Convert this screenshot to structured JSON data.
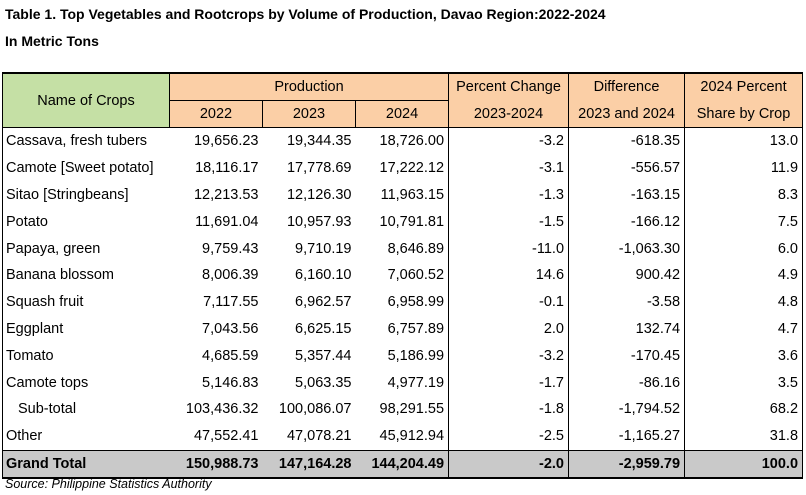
{
  "title": "Table 1. Top Vegetables and Rootcrops by Volume of Production, Davao Region:2022-2024",
  "subtitle": "In Metric Tons",
  "header": {
    "name_col": "Name of Crops",
    "production": "Production",
    "years": [
      "2022",
      "2023",
      "2024"
    ],
    "pct_change_top": "Percent Change",
    "pct_change_bottom": "2023-2024",
    "difference_top": "Difference",
    "difference_bottom": "2023 and 2024",
    "share_top": "2024 Percent",
    "share_bottom": "Share by Crop"
  },
  "rows": [
    {
      "name": "Cassava, fresh tubers",
      "y2022": "19,656.23",
      "y2023": "19,344.35",
      "y2024": "18,726.00",
      "pct": "-3.2",
      "diff": "-618.35",
      "share": "13.0"
    },
    {
      "name": "Camote [Sweet potato]",
      "y2022": "18,116.17",
      "y2023": "17,778.69",
      "y2024": "17,222.12",
      "pct": "-3.1",
      "diff": "-556.57",
      "share": "11.9"
    },
    {
      "name": "Sitao [Stringbeans]",
      "y2022": "12,213.53",
      "y2023": "12,126.30",
      "y2024": "11,963.15",
      "pct": "-1.3",
      "diff": "-163.15",
      "share": "8.3"
    },
    {
      "name": "Potato",
      "y2022": "11,691.04",
      "y2023": "10,957.93",
      "y2024": "10,791.81",
      "pct": "-1.5",
      "diff": "-166.12",
      "share": "7.5"
    },
    {
      "name": "Papaya, green",
      "y2022": "9,759.43",
      "y2023": "9,710.19",
      "y2024": "8,646.89",
      "pct": "-11.0",
      "diff": "-1,063.30",
      "share": "6.0"
    },
    {
      "name": "Banana blossom",
      "y2022": "8,006.39",
      "y2023": "6,160.10",
      "y2024": "7,060.52",
      "pct": "14.6",
      "diff": "900.42",
      "share": "4.9"
    },
    {
      "name": "Squash fruit",
      "y2022": "7,117.55",
      "y2023": "6,962.57",
      "y2024": "6,958.99",
      "pct": "-0.1",
      "diff": "-3.58",
      "share": "4.8"
    },
    {
      "name": "Eggplant",
      "y2022": "7,043.56",
      "y2023": "6,625.15",
      "y2024": "6,757.89",
      "pct": "2.0",
      "diff": "132.74",
      "share": "4.7"
    },
    {
      "name": "Tomato",
      "y2022": "4,685.59",
      "y2023": "5,357.44",
      "y2024": "5,186.99",
      "pct": "-3.2",
      "diff": "-170.45",
      "share": "3.6"
    },
    {
      "name": "Camote tops",
      "y2022": "5,146.83",
      "y2023": "5,063.35",
      "y2024": "4,977.19",
      "pct": "-1.7",
      "diff": "-86.16",
      "share": "3.5"
    }
  ],
  "subtotal": {
    "name": "Sub-total",
    "y2022": "103,436.32",
    "y2023": "100,086.07",
    "y2024": "98,291.55",
    "pct": "-1.8",
    "diff": "-1,794.52",
    "share": "68.2"
  },
  "other": {
    "name": "Other",
    "y2022": "47,552.41",
    "y2023": "47,078.21",
    "y2024": "45,912.94",
    "pct": "-2.5",
    "diff": "-1,165.27",
    "share": "31.8"
  },
  "grand_total": {
    "name": "Grand Total",
    "y2022": "150,988.73",
    "y2023": "147,164.28",
    "y2024": "144,204.49",
    "pct": "-2.0",
    "diff": "-2,959.79",
    "share": "100.0"
  },
  "source": "Source: Philippine Statistics Authority",
  "colors": {
    "header_production": "#fbcfa6",
    "header_name": "#c5e0a5",
    "grand_total": "#c9c9c9"
  }
}
